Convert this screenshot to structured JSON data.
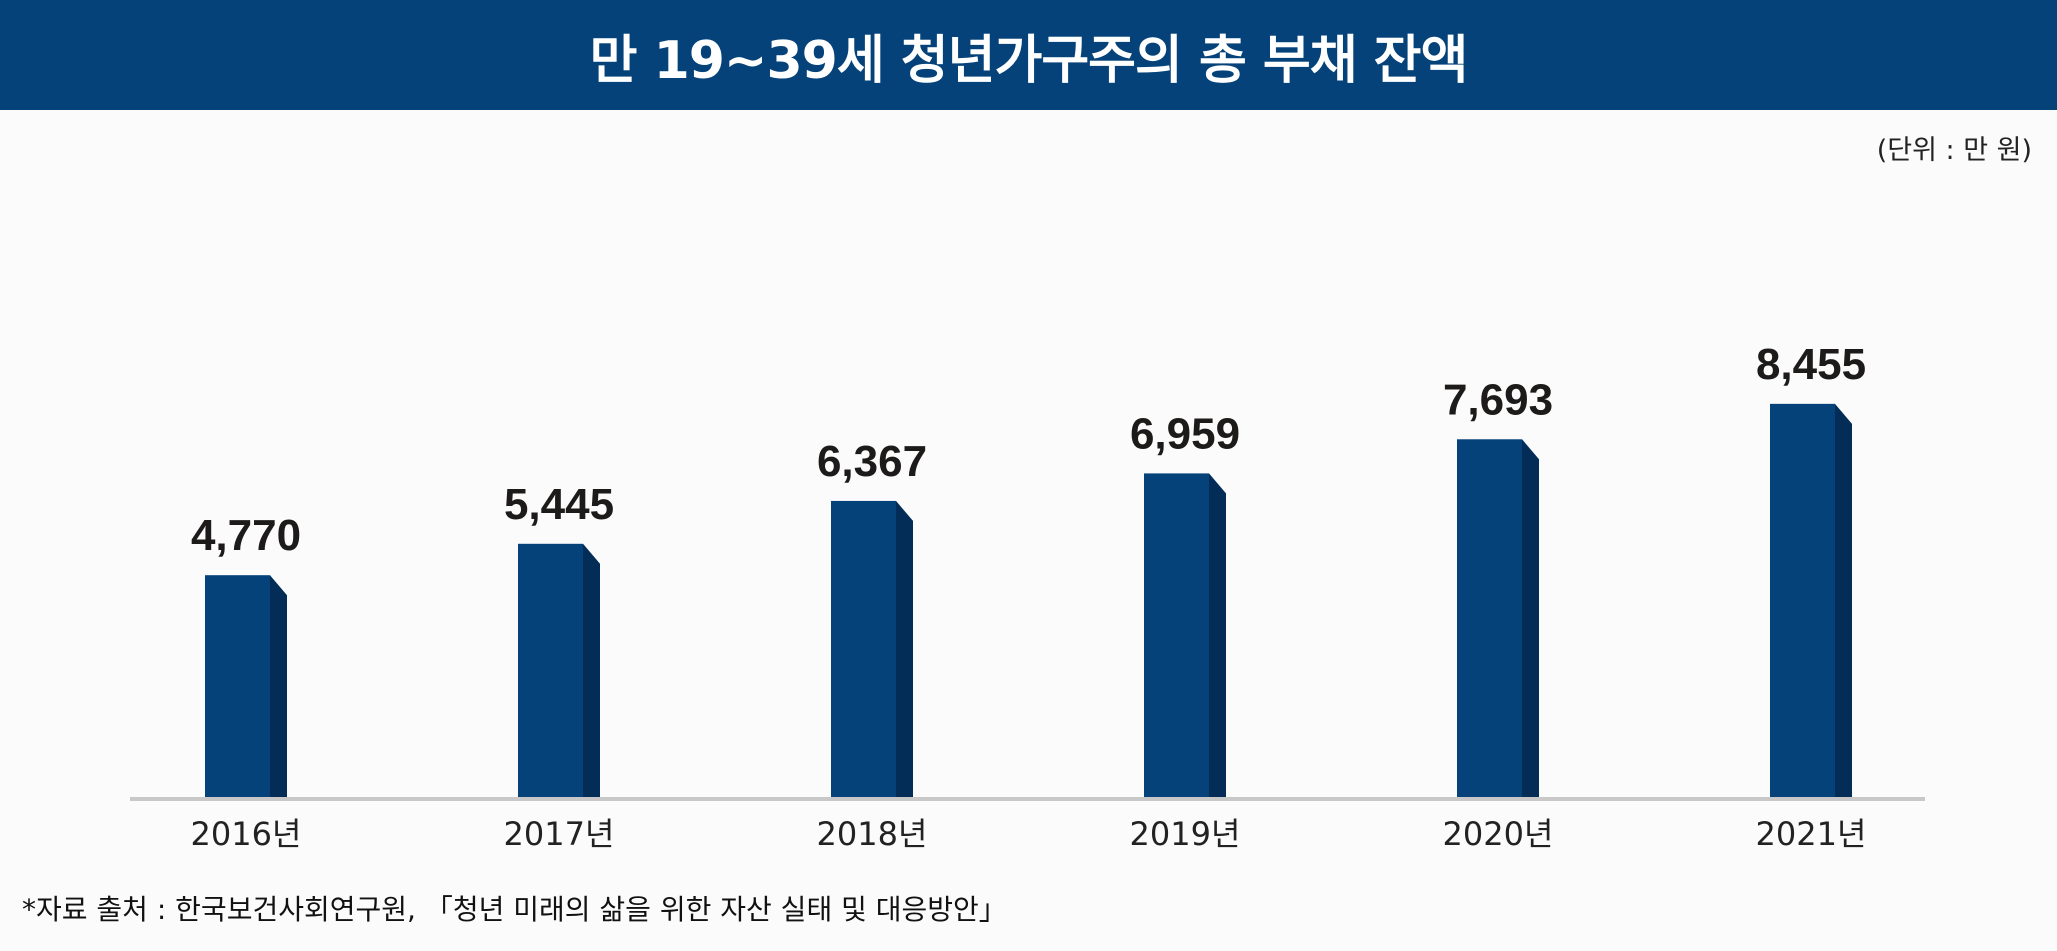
{
  "chart_data": {
    "type": "bar",
    "title": "만 19~39세 청년가구주의 총 부채 잔액",
    "unit_label": "(단위 : 만 원)",
    "categories": [
      "2016년",
      "2017년",
      "2018년",
      "2019년",
      "2020년",
      "2021년"
    ],
    "values": [
      4770,
      5445,
      6367,
      6959,
      7693,
      8455
    ],
    "value_labels": [
      "4,770",
      "5,445",
      "6,367",
      "6,959",
      "7,693",
      "8,455"
    ],
    "xlabel": "",
    "ylabel": "",
    "grid": false,
    "colors": {
      "bar_front": "#05427a",
      "bar_side": "#032d57",
      "title_bg": "#05427a"
    }
  },
  "source": "*자료 출처 : 한국보건사회연구원, 「청년 미래의 삶을 위한 자산 실태 및 대응방안」"
}
